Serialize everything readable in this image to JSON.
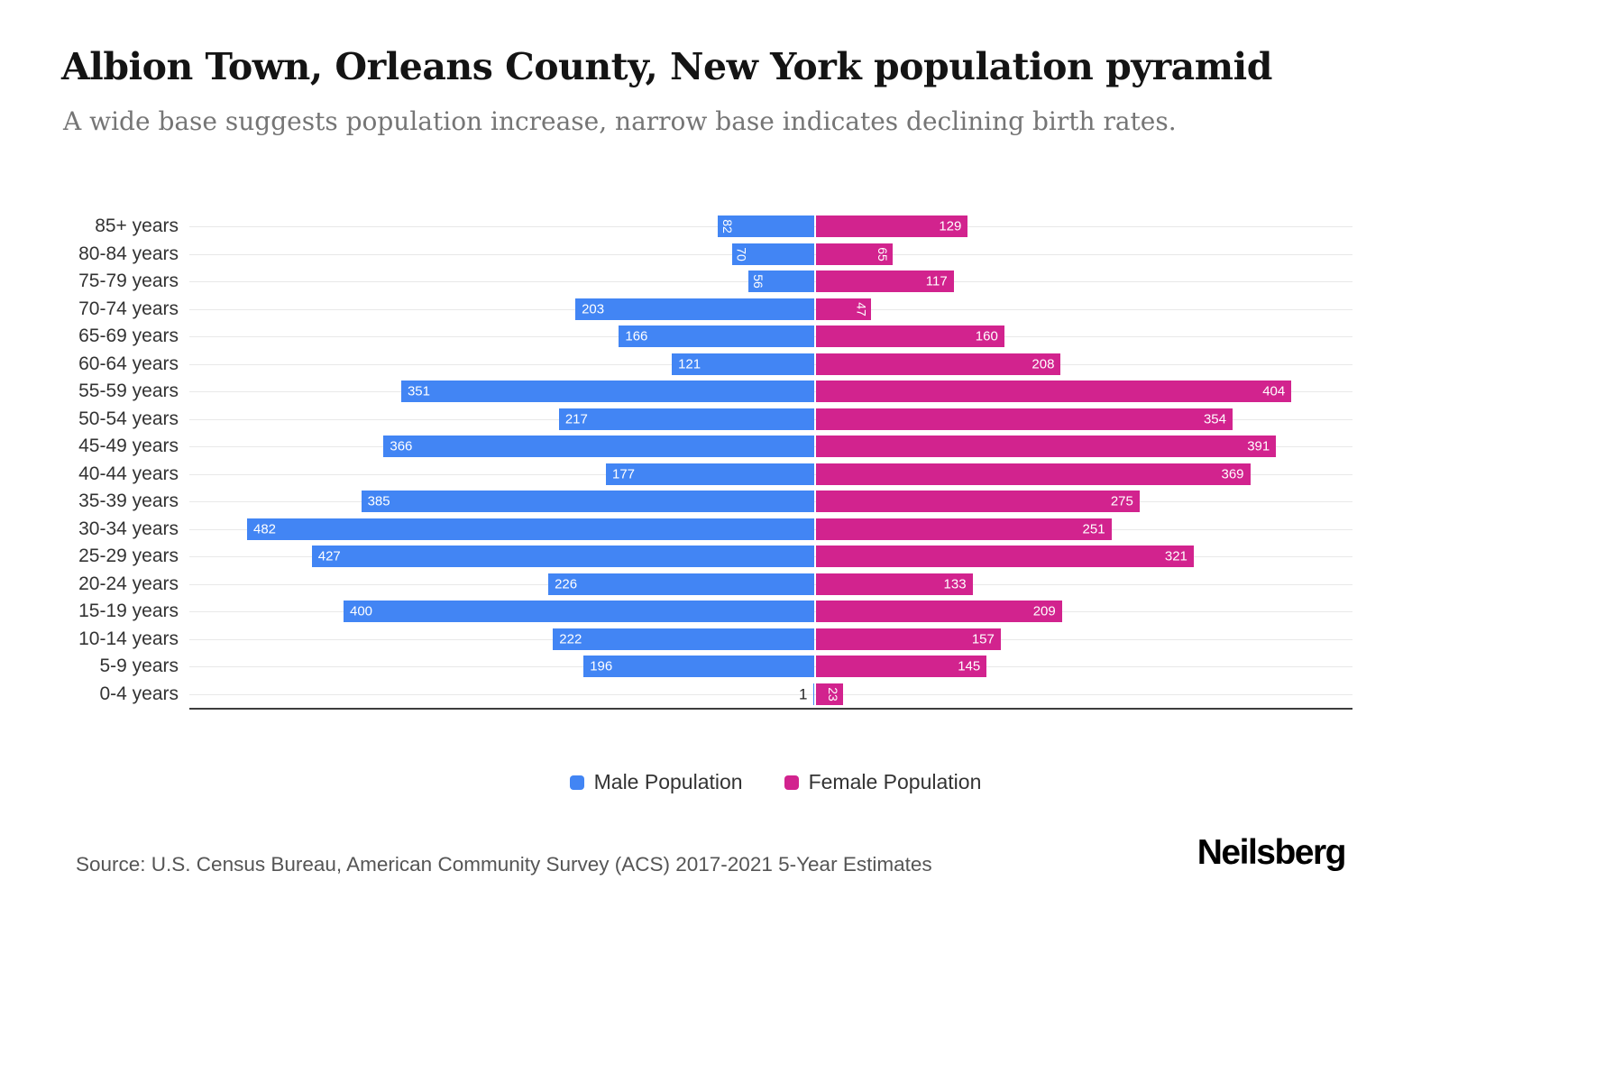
{
  "title": "Albion Town, Orleans County, New York population pyramid",
  "subtitle": "A wide base suggests population increase, narrow base indicates declining birth rates.",
  "legend": {
    "male_label": "Male Population",
    "female_label": "Female Population"
  },
  "source": "Source: U.S. Census Bureau, American Community Survey (ACS) 2017-2021 5-Year Estimates",
  "brand": "Neilsberg",
  "colors": {
    "male": "#4285F4",
    "female": "#D2238E",
    "gridline": "#E8E8E8",
    "axis": "#3D3D3D",
    "title": "#141414",
    "subtitle": "#757575",
    "label_text": "#333333",
    "source_text": "#555555"
  },
  "chart_data": {
    "type": "bar",
    "variant": "population-pyramid",
    "orientation": "horizontal",
    "title": "Albion Town, Orleans County, New York population pyramid",
    "subtitle": "A wide base suggests population increase, narrow base indicates declining birth rates.",
    "categories": [
      "85+ years",
      "80-84 years",
      "75-79 years",
      "70-74 years",
      "65-69 years",
      "60-64 years",
      "55-59 years",
      "50-54 years",
      "45-49 years",
      "40-44 years",
      "35-39 years",
      "30-34 years",
      "25-29 years",
      "20-24 years",
      "15-19 years",
      "10-14 years",
      "5-9 years",
      "0-4 years"
    ],
    "series": [
      {
        "name": "Male Population",
        "side": "left",
        "color": "#4285F4",
        "values": [
          82,
          70,
          56,
          203,
          166,
          121,
          351,
          217,
          366,
          177,
          385,
          482,
          427,
          226,
          400,
          222,
          196,
          1
        ]
      },
      {
        "name": "Female Population",
        "side": "right",
        "color": "#D2238E",
        "values": [
          129,
          65,
          117,
          47,
          160,
          208,
          404,
          354,
          391,
          369,
          275,
          251,
          321,
          133,
          209,
          157,
          145,
          23
        ]
      }
    ],
    "value_labels": true,
    "grid": true,
    "legend_position": "bottom"
  }
}
